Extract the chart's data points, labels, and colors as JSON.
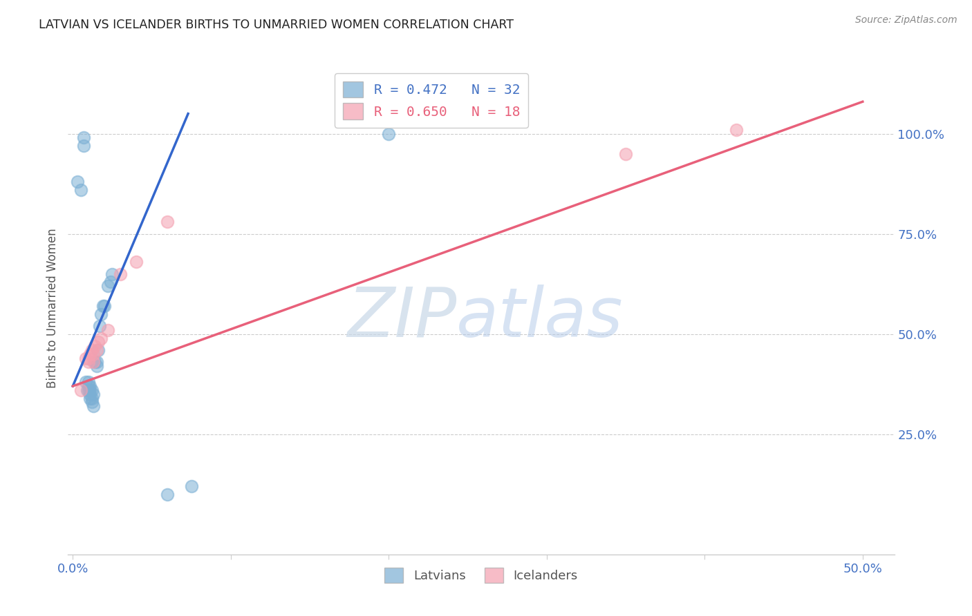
{
  "title": "LATVIAN VS ICELANDER BIRTHS TO UNMARRIED WOMEN CORRELATION CHART",
  "source": "Source: ZipAtlas.com",
  "ylabel": "Births to Unmarried Women",
  "xlim": [
    -0.003,
    0.52
  ],
  "ylim": [
    -0.05,
    1.18
  ],
  "xticks": [
    0.0,
    0.1,
    0.2,
    0.3,
    0.4,
    0.5
  ],
  "xticklabels": [
    "0.0%",
    "",
    "",
    "",
    "",
    "50.0%"
  ],
  "ytick_positions": [
    0.0,
    0.25,
    0.5,
    0.75,
    1.0
  ],
  "yticklabels_right": [
    "",
    "25.0%",
    "50.0%",
    "75.0%",
    "100.0%"
  ],
  "latvian_color": "#7bafd4",
  "icelander_color": "#f4a0b0",
  "line_latvian_color": "#3366cc",
  "line_icelander_color": "#e8607a",
  "legend_text_latvian": "R = 0.472   N = 32",
  "legend_text_icelander": "R = 0.650   N = 18",
  "bottom_legend_latvian": "Latvians",
  "bottom_legend_icelander": "Icelanders",
  "watermark_zip": "ZIP",
  "watermark_atlas": "atlas",
  "bg_color": "#ffffff",
  "grid_color": "#cccccc",
  "axis_color": "#4472c4",
  "title_color": "#222222",
  "source_color": "#888888",
  "latvian_scatter_x": [
    0.003,
    0.005,
    0.007,
    0.007,
    0.008,
    0.009,
    0.01,
    0.01,
    0.01,
    0.011,
    0.011,
    0.011,
    0.011,
    0.012,
    0.012,
    0.012,
    0.013,
    0.013,
    0.014,
    0.015,
    0.015,
    0.016,
    0.017,
    0.018,
    0.019,
    0.02,
    0.022,
    0.024,
    0.025,
    0.06,
    0.075,
    0.2
  ],
  "latvian_scatter_y": [
    0.88,
    0.86,
    0.97,
    0.99,
    0.38,
    0.36,
    0.36,
    0.37,
    0.38,
    0.37,
    0.36,
    0.35,
    0.34,
    0.36,
    0.34,
    0.33,
    0.35,
    0.32,
    0.43,
    0.43,
    0.42,
    0.46,
    0.52,
    0.55,
    0.57,
    0.57,
    0.62,
    0.63,
    0.65,
    0.1,
    0.12,
    1.0
  ],
  "icelander_scatter_x": [
    0.005,
    0.008,
    0.01,
    0.01,
    0.011,
    0.012,
    0.013,
    0.013,
    0.014,
    0.015,
    0.016,
    0.018,
    0.022,
    0.03,
    0.04,
    0.06,
    0.35,
    0.42
  ],
  "icelander_scatter_y": [
    0.36,
    0.44,
    0.43,
    0.44,
    0.45,
    0.46,
    0.43,
    0.45,
    0.47,
    0.46,
    0.48,
    0.49,
    0.51,
    0.65,
    0.68,
    0.78,
    0.95,
    1.01
  ],
  "latvian_line": {
    "x0": 0.0,
    "y0": 0.37,
    "x1": 0.073,
    "y1": 1.05
  },
  "icelander_line": {
    "x0": 0.0,
    "y0": 0.37,
    "x1": 0.5,
    "y1": 1.08
  }
}
